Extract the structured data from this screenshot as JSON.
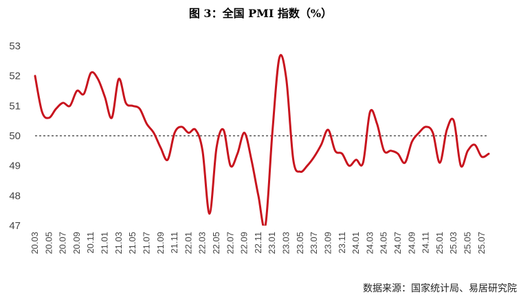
{
  "title": "图 3：全国 PMI 指数（%）",
  "source": "数据来源：国家统计局、易居研究院",
  "colors": {
    "line": "#c8141e",
    "reference": "#000000",
    "axis_text": "#444444"
  },
  "chart_data": {
    "type": "line",
    "title": "图 3：全国 PMI 指数（%）",
    "xlabel": "",
    "ylabel": "",
    "ylim": [
      47,
      53
    ],
    "y_ticks": [
      47,
      48,
      49,
      50,
      51,
      52,
      53
    ],
    "y_tick_labels": [
      "47",
      "48",
      "49",
      "50",
      "51",
      "52",
      "53"
    ],
    "reference_line": {
      "y": 50,
      "style": "dashed"
    },
    "grid": false,
    "x_tick_labels": [
      "20.03",
      "20.05",
      "20.07",
      "20.09",
      "20.11",
      "21.01",
      "21.03",
      "21.05",
      "21.07",
      "21.09",
      "21.11",
      "22.01",
      "22.03",
      "22.05",
      "22.07",
      "22.09",
      "22.11",
      "23.01",
      "23.03",
      "23.05",
      "23.07",
      "23.09",
      "23.11",
      "24.01",
      "24.03",
      "24.05",
      "24.07",
      "24.09",
      "24.11",
      "25.01",
      "25.03",
      "25.05",
      "25.07"
    ],
    "categories": [
      "20.03",
      "20.04",
      "20.05",
      "20.06",
      "20.07",
      "20.08",
      "20.09",
      "20.10",
      "20.11",
      "20.12",
      "21.01",
      "21.02",
      "21.03",
      "21.04",
      "21.05",
      "21.06",
      "21.07",
      "21.08",
      "21.09",
      "21.10",
      "21.11",
      "21.12",
      "22.01",
      "22.02",
      "22.03",
      "22.04",
      "22.05",
      "22.06",
      "22.07",
      "22.08",
      "22.09",
      "22.10",
      "22.11",
      "22.12",
      "23.01",
      "23.02",
      "23.03",
      "23.04",
      "23.05",
      "23.06",
      "23.07",
      "23.08",
      "23.09",
      "23.10",
      "23.11",
      "23.12",
      "24.01",
      "24.02",
      "24.03",
      "24.04",
      "24.05",
      "24.06",
      "24.07",
      "24.08",
      "24.09",
      "24.10",
      "24.11",
      "24.12",
      "25.01",
      "25.02",
      "25.03",
      "25.04",
      "25.05",
      "25.06",
      "25.07",
      "25.08"
    ],
    "series": [
      {
        "values": [
          52.0,
          50.8,
          50.6,
          50.9,
          51.1,
          51.0,
          51.5,
          51.4,
          52.1,
          51.9,
          51.3,
          50.6,
          51.9,
          51.1,
          51.0,
          50.9,
          50.4,
          50.1,
          49.6,
          49.2,
          50.1,
          50.3,
          50.1,
          50.2,
          49.5,
          47.4,
          49.6,
          50.2,
          49.0,
          49.4,
          50.1,
          49.2,
          48.0,
          47.0,
          50.1,
          52.6,
          51.9,
          49.2,
          48.8,
          49.0,
          49.3,
          49.7,
          50.2,
          49.5,
          49.4,
          49.0,
          49.2,
          49.1,
          50.8,
          50.4,
          49.5,
          49.5,
          49.4,
          49.1,
          49.8,
          50.1,
          50.3,
          50.1,
          49.1,
          50.2,
          50.5,
          49.0,
          49.5,
          49.7,
          49.3,
          49.4
        ]
      }
    ]
  }
}
